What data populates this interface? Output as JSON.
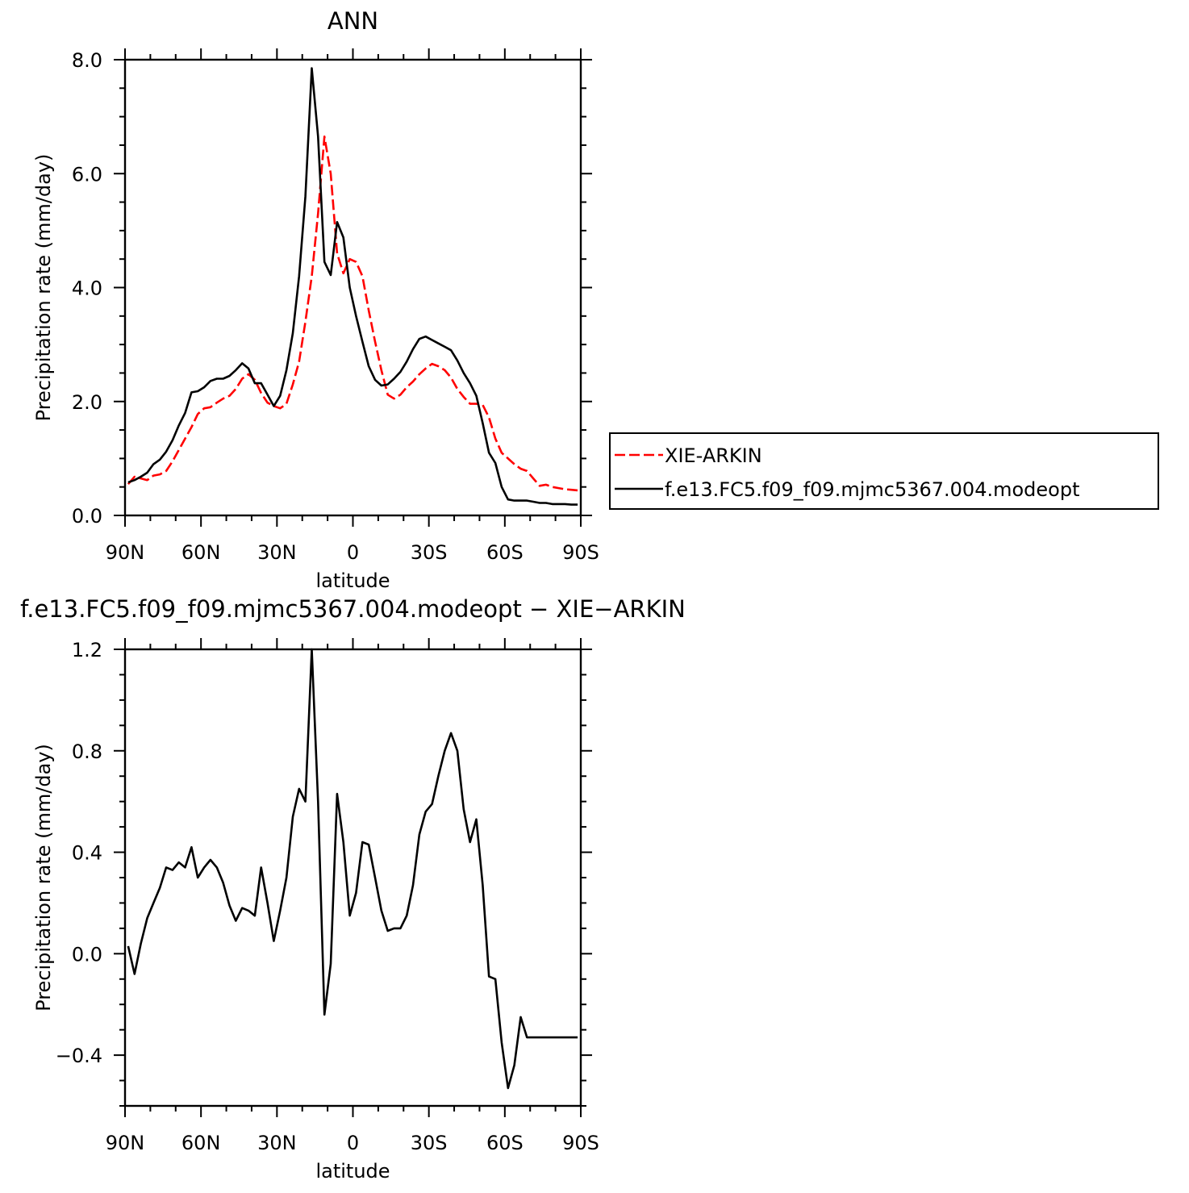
{
  "chart_data": [
    {
      "type": "line",
      "title": "ANN",
      "xlabel": "latitude",
      "ylabel": "Precipitation rate (mm/day)",
      "xlim": [
        90,
        -90
      ],
      "ylim": [
        0,
        8
      ],
      "x_ticks": [
        {
          "value": 90,
          "label": "90N"
        },
        {
          "value": 60,
          "label": "60N"
        },
        {
          "value": 30,
          "label": "30N"
        },
        {
          "value": 0,
          "label": "0"
        },
        {
          "value": -30,
          "label": "30S"
        },
        {
          "value": -60,
          "label": "60S"
        },
        {
          "value": -90,
          "label": "90S"
        }
      ],
      "y_ticks": [
        {
          "value": 0,
          "label": "0.0"
        },
        {
          "value": 2,
          "label": "2.0"
        },
        {
          "value": 4,
          "label": "4.0"
        },
        {
          "value": 6,
          "label": "6.0"
        },
        {
          "value": 8,
          "label": "8.0"
        }
      ],
      "legend_position": "right",
      "grid": false,
      "series": [
        {
          "name": "XIE-ARKIN",
          "color": "#ff0000",
          "dash": "dashed",
          "x": [
            88.75,
            86.25,
            83.75,
            81.25,
            78.75,
            76.25,
            73.75,
            71.25,
            68.75,
            66.25,
            63.75,
            61.25,
            58.75,
            56.25,
            53.75,
            51.25,
            48.75,
            46.25,
            43.75,
            41.25,
            38.75,
            36.25,
            33.75,
            31.25,
            28.75,
            26.25,
            23.75,
            21.25,
            18.75,
            16.25,
            13.75,
            11.25,
            8.75,
            6.25,
            3.75,
            1.25,
            -1.25,
            -3.75,
            -6.25,
            -8.75,
            -11.25,
            -13.75,
            -16.25,
            -18.75,
            -21.25,
            -23.75,
            -26.25,
            -28.75,
            -31.25,
            -33.75,
            -36.25,
            -38.75,
            -41.25,
            -43.75,
            -46.25,
            -48.75,
            -51.25,
            -53.75,
            -56.25,
            -58.75,
            -61.25,
            -63.75,
            -66.25,
            -68.75,
            -71.25,
            -73.75,
            -76.25,
            -78.75,
            -81.25,
            -83.75,
            -86.25,
            -88.75
          ],
          "y": [
            0.55,
            0.68,
            0.65,
            0.62,
            0.7,
            0.72,
            0.78,
            0.95,
            1.15,
            1.35,
            1.55,
            1.78,
            1.88,
            1.9,
            1.98,
            2.05,
            2.1,
            2.22,
            2.4,
            2.48,
            2.38,
            2.15,
            1.98,
            1.92,
            1.88,
            1.96,
            2.3,
            2.7,
            3.4,
            4.2,
            5.3,
            6.65,
            6.0,
            4.6,
            4.25,
            4.5,
            4.45,
            4.2,
            3.6,
            3.05,
            2.55,
            2.12,
            2.05,
            2.12,
            2.25,
            2.35,
            2.48,
            2.58,
            2.66,
            2.62,
            2.55,
            2.42,
            2.22,
            2.08,
            1.96,
            1.96,
            1.94,
            1.72,
            1.35,
            1.1,
            1.0,
            0.9,
            0.82,
            0.78,
            0.65,
            0.52,
            0.54,
            0.5,
            0.48,
            0.46,
            0.45,
            0.44
          ]
        },
        {
          "name": "f.e13.FC5.f09_f09.mjmc5367.004.modeopt",
          "color": "#000000",
          "dash": "solid",
          "x": [
            88.75,
            86.25,
            83.75,
            81.25,
            78.75,
            76.25,
            73.75,
            71.25,
            68.75,
            66.25,
            63.75,
            61.25,
            58.75,
            56.25,
            53.75,
            51.25,
            48.75,
            46.25,
            43.75,
            41.25,
            38.75,
            36.25,
            33.75,
            31.25,
            28.75,
            26.25,
            23.75,
            21.25,
            18.75,
            16.25,
            13.75,
            11.25,
            8.75,
            6.25,
            3.75,
            1.25,
            -1.25,
            -3.75,
            -6.25,
            -8.75,
            -11.25,
            -13.75,
            -16.25,
            -18.75,
            -21.25,
            -23.75,
            -26.25,
            -28.75,
            -31.25,
            -33.75,
            -36.25,
            -38.75,
            -41.25,
            -43.75,
            -46.25,
            -48.75,
            -51.25,
            -53.75,
            -56.25,
            -58.75,
            -61.25,
            -63.75,
            -66.25,
            -68.75,
            -71.25,
            -73.75,
            -76.25,
            -78.75,
            -81.25,
            -83.75,
            -86.25,
            -88.75
          ],
          "y": [
            0.58,
            0.62,
            0.68,
            0.75,
            0.9,
            0.98,
            1.12,
            1.32,
            1.58,
            1.8,
            2.16,
            2.18,
            2.25,
            2.36,
            2.4,
            2.4,
            2.45,
            2.55,
            2.67,
            2.58,
            2.32,
            2.32,
            2.12,
            1.92,
            2.1,
            2.55,
            3.2,
            4.2,
            5.6,
            7.85,
            6.65,
            4.45,
            4.22,
            5.15,
            4.88,
            4.0,
            3.5,
            3.05,
            2.62,
            2.38,
            2.28,
            2.3,
            2.4,
            2.52,
            2.7,
            2.92,
            3.1,
            3.14,
            3.08,
            3.02,
            2.96,
            2.9,
            2.72,
            2.5,
            2.32,
            2.1,
            1.62,
            1.1,
            0.92,
            0.5,
            0.28,
            0.26,
            0.26,
            0.26,
            0.24,
            0.22,
            0.22,
            0.2,
            0.2,
            0.2,
            0.19,
            0.19
          ]
        }
      ]
    },
    {
      "type": "line",
      "title": "f.e13.FC5.f09_f09.mjmc5367.004.modeopt − XIE−ARKIN",
      "xlabel": "latitude",
      "ylabel": "Precipitation rate (mm/day)",
      "xlim": [
        90,
        -90
      ],
      "ylim": [
        -0.6,
        1.2
      ],
      "x_ticks": [
        {
          "value": 90,
          "label": "90N"
        },
        {
          "value": 60,
          "label": "60N"
        },
        {
          "value": 30,
          "label": "30N"
        },
        {
          "value": 0,
          "label": "0"
        },
        {
          "value": -30,
          "label": "30S"
        },
        {
          "value": -60,
          "label": "60S"
        },
        {
          "value": -90,
          "label": "90S"
        }
      ],
      "y_ticks": [
        {
          "value": -0.4,
          "label": "−0.4"
        },
        {
          "value": 0.0,
          "label": "0.0"
        },
        {
          "value": 0.4,
          "label": "0.4"
        },
        {
          "value": 0.8,
          "label": "0.8"
        },
        {
          "value": 1.2,
          "label": "1.2"
        }
      ],
      "grid": false,
      "series": [
        {
          "color": "#000000",
          "dash": "solid",
          "x": [
            88.75,
            86.25,
            83.75,
            81.25,
            78.75,
            76.25,
            73.75,
            71.25,
            68.75,
            66.25,
            63.75,
            61.25,
            58.75,
            56.25,
            53.75,
            51.25,
            48.75,
            46.25,
            43.75,
            41.25,
            38.75,
            36.25,
            33.75,
            31.25,
            28.75,
            26.25,
            23.75,
            21.25,
            18.75,
            16.25,
            13.75,
            11.25,
            8.75,
            6.25,
            3.75,
            1.25,
            -1.25,
            -3.75,
            -6.25,
            -8.75,
            -11.25,
            -13.75,
            -16.25,
            -18.75,
            -21.25,
            -23.75,
            -26.25,
            -28.75,
            -31.25,
            -33.75,
            -36.25,
            -38.75,
            -41.25,
            -43.75,
            -46.25,
            -48.75,
            -51.25,
            -53.75,
            -56.25,
            -58.75,
            -61.25,
            -63.75,
            -66.25,
            -68.75,
            -71.25,
            -73.75,
            -76.25,
            -78.75,
            -81.25,
            -83.75,
            -86.25,
            -88.75
          ],
          "y": [
            0.03,
            -0.08,
            0.04,
            0.14,
            0.2,
            0.26,
            0.34,
            0.33,
            0.36,
            0.34,
            0.42,
            0.3,
            0.34,
            0.37,
            0.34,
            0.28,
            0.19,
            0.13,
            0.18,
            0.17,
            0.15,
            0.34,
            0.2,
            0.05,
            0.17,
            0.3,
            0.54,
            0.65,
            0.6,
            1.2,
            0.6,
            -0.24,
            -0.04,
            0.63,
            0.44,
            0.15,
            0.24,
            0.44,
            0.43,
            0.3,
            0.17,
            0.09,
            0.1,
            0.1,
            0.15,
            0.27,
            0.47,
            0.56,
            0.59,
            0.7,
            0.8,
            0.87,
            0.8,
            0.57,
            0.44,
            0.53,
            0.27,
            -0.09,
            -0.1,
            -0.35,
            -0.53,
            -0.44,
            -0.25,
            -0.33,
            -0.33,
            -0.33,
            -0.33,
            -0.33,
            -0.33,
            -0.33,
            -0.33,
            -0.33
          ]
        }
      ]
    }
  ]
}
